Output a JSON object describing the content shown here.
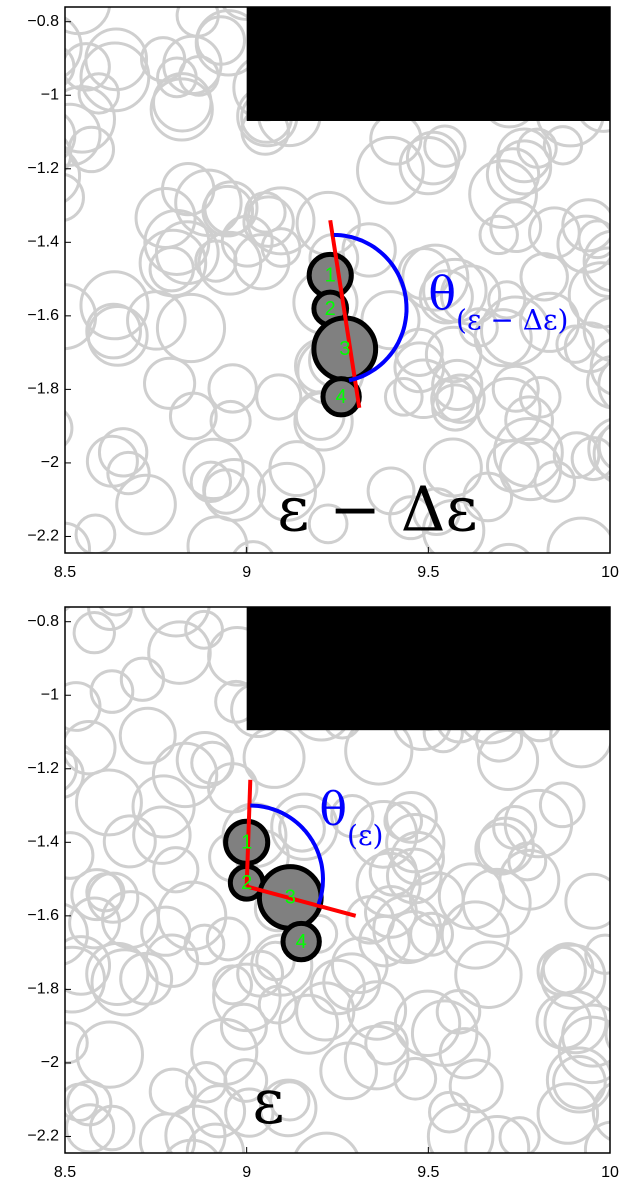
{
  "chart_data": [
    {
      "type": "particles",
      "xlim": [
        8.5,
        10
      ],
      "ylim": [
        -2.245,
        -0.76
      ],
      "xticks": [
        8.5,
        9,
        9.5,
        10
      ],
      "yticks": [
        {
          "value": -0.8,
          "label": "−0.8"
        },
        {
          "value": -1,
          "label": "−1"
        },
        {
          "value": -1.2,
          "label": "−1.2"
        },
        {
          "value": -1.4,
          "label": "−1.4"
        },
        {
          "value": -1.6,
          "label": "−1.6"
        },
        {
          "value": -1.8,
          "label": "−1.8"
        },
        {
          "value": -2,
          "label": "−2"
        },
        {
          "value": -2.2,
          "label": "−2.2"
        }
      ],
      "obstacle": {
        "x": [
          9,
          10
        ],
        "y": [
          -1.07,
          -0.76
        ],
        "color": "#000000"
      },
      "particles": {
        "labels": [
          "1",
          "2",
          "3",
          "4"
        ],
        "x": [
          9.23,
          9.23,
          9.27,
          9.26
        ],
        "y": [
          -1.49,
          -1.58,
          -1.69,
          -1.82
        ],
        "r": [
          0.058,
          0.045,
          0.085,
          0.05
        ],
        "color": "#808080",
        "label_color": "#00ff00"
      },
      "red_lines": [
        {
          "x": [
            9.23,
            9.31
          ],
          "y": [
            -1.34,
            -1.85
          ]
        }
      ],
      "red_color": "#ff0000",
      "angle_arc": {
        "cx": 9.24,
        "cy": -1.58,
        "r": 0.2,
        "start_deg": 90,
        "end_deg": -78,
        "color": "#0000ff"
      },
      "angle_label": {
        "symbol": "θ",
        "subscript": "(ε − Δε)",
        "x": 9.5,
        "y": -1.55
      },
      "state_label": {
        "text": "ε − Δε",
        "x": 9.36,
        "y": -2.14
      }
    },
    {
      "type": "particles",
      "xlim": [
        8.5,
        10
      ],
      "ylim": [
        -2.245,
        -0.76
      ],
      "xticks": [
        8.5,
        9,
        9.5,
        10
      ],
      "yticks": [
        {
          "value": -0.8,
          "label": "−0.8"
        },
        {
          "value": -1,
          "label": "−1"
        },
        {
          "value": -1.2,
          "label": "−1.2"
        },
        {
          "value": -1.4,
          "label": "−1.4"
        },
        {
          "value": -1.6,
          "label": "−1.6"
        },
        {
          "value": -1.8,
          "label": "−1.8"
        },
        {
          "value": -2,
          "label": "−2"
        },
        {
          "value": -2.2,
          "label": "−2.2"
        }
      ],
      "obstacle": {
        "x": [
          9,
          10
        ],
        "y": [
          -1.095,
          -0.76
        ],
        "color": "#000000"
      },
      "particles": {
        "labels": [
          "1",
          "2",
          "3",
          "4"
        ],
        "x": [
          9.0,
          9.0,
          9.12,
          9.15
        ],
        "y": [
          -1.4,
          -1.51,
          -1.55,
          -1.67
        ],
        "r": [
          0.058,
          0.045,
          0.085,
          0.05
        ],
        "color": "#808080",
        "label_color": "#00ff00"
      },
      "red_lines": [
        {
          "x": [
            9.01,
            9.0
          ],
          "y": [
            -1.23,
            -1.52
          ]
        },
        {
          "x": [
            9.0,
            9.3
          ],
          "y": [
            -1.52,
            -1.6
          ]
        }
      ],
      "red_color": "#ff0000",
      "angle_arc": {
        "cx": 9.01,
        "cy": -1.5,
        "r": 0.2,
        "start_deg": 90,
        "end_deg": -20,
        "color": "#0000ff"
      },
      "angle_label": {
        "symbol": "θ",
        "subscript": "(ε)",
        "x": 9.2,
        "y": -1.32
      },
      "state_label": {
        "text": "ε",
        "x": 9.06,
        "y": -2.12
      }
    }
  ]
}
